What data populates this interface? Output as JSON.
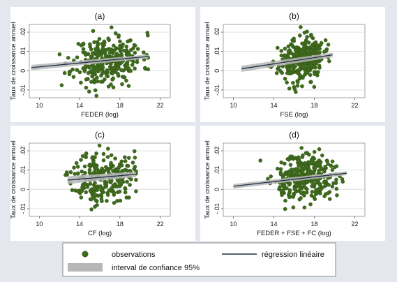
{
  "style": {
    "background": "#e4e8ee",
    "panel_background": "#ffffff",
    "point_color": "#3f6b1e",
    "point_edge": "#2e5010",
    "ci_color": "#b7b7b7",
    "fit_line_color": "#1f2f45",
    "grid_color": "#dcdcdc"
  },
  "chart_data": [
    {
      "type": "scatter",
      "title": "(a)",
      "xlabel": "FEDER (log)",
      "ylabel": "Taux de croissance annuel",
      "xlim": [
        9,
        23
      ],
      "ylim": [
        -0.014,
        0.024
      ],
      "xticks": [
        "10",
        "14",
        "18",
        "22"
      ],
      "yticks": [
        "-.01",
        "0",
        ".01",
        ".02"
      ],
      "grid": true,
      "fit": {
        "x": [
          9.2,
          20.8
        ],
        "y": [
          0.0016,
          0.0074
        ]
      },
      "ci": {
        "lower": [
          0.0002,
          0.0064
        ],
        "upper": [
          0.003,
          0.0084
        ]
      },
      "scatter_params": {
        "n": 300,
        "x_mean": 16.8,
        "x_sd": 1.7,
        "x_min": 9.3,
        "x_max": 20.8,
        "y_sd": 0.0062,
        "seed": 11
      },
      "points": []
    },
    {
      "type": "scatter",
      "title": "(b)",
      "xlabel": "FSE (log)",
      "ylabel": "Taux de croissance annuel",
      "xlim": [
        9,
        23
      ],
      "ylim": [
        -0.014,
        0.024
      ],
      "xticks": [
        "10",
        "14",
        "18",
        "22"
      ],
      "yticks": [
        "-.01",
        "0",
        ".01",
        ".02"
      ],
      "grid": true,
      "fit": {
        "x": [
          10.8,
          19.8
        ],
        "y": [
          0.001,
          0.0082
        ]
      },
      "ci": {
        "lower": [
          -0.0006,
          0.007
        ],
        "upper": [
          0.0026,
          0.0094
        ]
      },
      "scatter_params": {
        "n": 300,
        "x_mean": 16.7,
        "x_sd": 1.1,
        "x_min": 10.8,
        "x_max": 19.9,
        "y_sd": 0.0055,
        "seed": 23
      },
      "points": []
    },
    {
      "type": "scatter",
      "title": "(c)",
      "xlabel": "CF (log)",
      "ylabel": "Taux de croissance annuel",
      "xlim": [
        9,
        23
      ],
      "ylim": [
        -0.014,
        0.024
      ],
      "xticks": [
        "10",
        "14",
        "18",
        "22"
      ],
      "yticks": [
        "-.01",
        "0",
        ".01",
        ".02"
      ],
      "grid": true,
      "fit": {
        "x": [
          12.8,
          19.6
        ],
        "y": [
          0.0048,
          0.0078
        ]
      },
      "ci": {
        "lower": [
          0.0028,
          0.0064
        ],
        "upper": [
          0.0068,
          0.0092
        ]
      },
      "scatter_params": {
        "n": 240,
        "x_mean": 16.3,
        "x_sd": 1.5,
        "x_min": 12.6,
        "x_max": 19.6,
        "y_sd": 0.0068,
        "seed": 37
      },
      "points": []
    },
    {
      "type": "scatter",
      "title": "(d)",
      "xlabel": "FEDER + FSE + FC (log)",
      "ylabel": "Taux de croissance annuel",
      "xlim": [
        9,
        23
      ],
      "ylim": [
        -0.014,
        0.024
      ],
      "xticks": [
        "10",
        "14",
        "18",
        "22"
      ],
      "yticks": [
        "-.01",
        "0",
        ".01",
        ".02"
      ],
      "grid": true,
      "fit": {
        "x": [
          10.0,
          21.2
        ],
        "y": [
          0.0016,
          0.0084
        ]
      },
      "ci": {
        "lower": [
          0.0004,
          0.0074
        ],
        "upper": [
          0.0028,
          0.0094
        ]
      },
      "scatter_params": {
        "n": 320,
        "x_mean": 17.2,
        "x_sd": 1.5,
        "x_min": 10.0,
        "x_max": 21.2,
        "y_sd": 0.006,
        "seed": 51
      },
      "points": []
    }
  ],
  "legend": {
    "observations": "observations",
    "regression": "régression linéaire",
    "ci": "interval de confiance 95%"
  }
}
